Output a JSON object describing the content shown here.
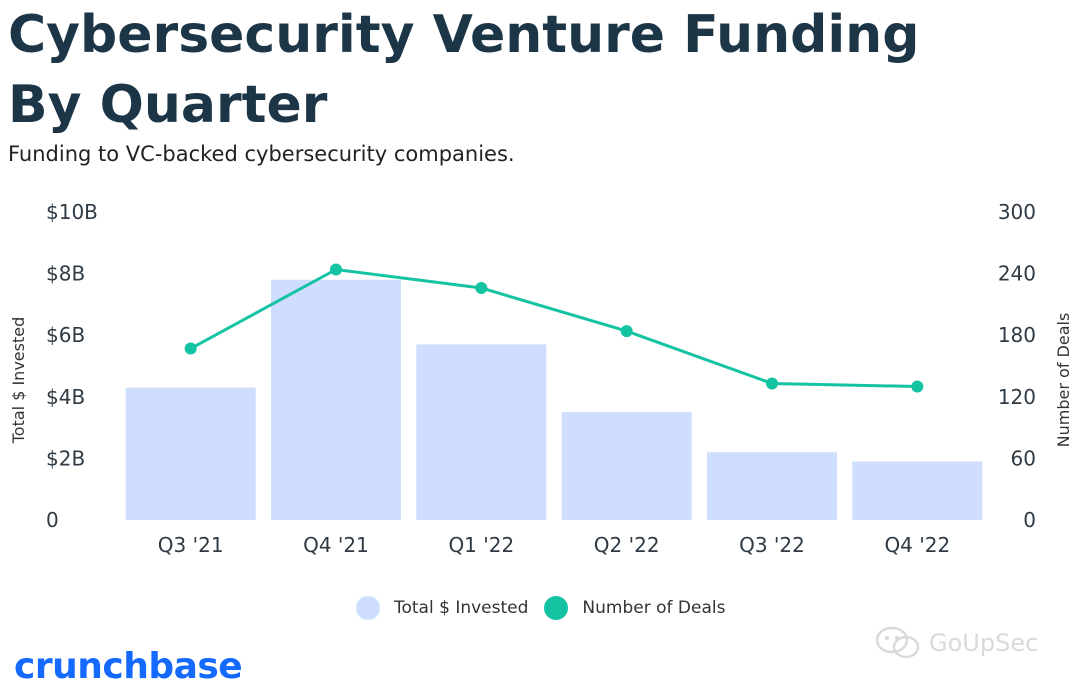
{
  "title": "Cybersecurity Venture Funding By Quarter",
  "subtitle": "Funding to VC-backed cybersecurity companies.",
  "brand": {
    "name": "crunchbase",
    "color": "#146aff"
  },
  "watermark": {
    "text": "GoUpSec"
  },
  "colors": {
    "bar": "#cfdefe",
    "line": "#14c3a2",
    "text": "#1c3547"
  },
  "chart_data": {
    "type": "bar",
    "categories": [
      "Q3 '21",
      "Q4 '21",
      "Q1 '22",
      "Q2 '22",
      "Q3 '22",
      "Q4 '22"
    ],
    "series": [
      {
        "name": "Total $ Invested",
        "type": "bar",
        "axis": "left",
        "values": [
          4.3,
          7.8,
          5.7,
          3.5,
          2.2,
          1.9
        ]
      },
      {
        "name": "Number of Deals",
        "type": "line",
        "axis": "right",
        "values": [
          167,
          244,
          226,
          184,
          133,
          130
        ]
      }
    ],
    "y_left": {
      "label": "Total $ Invested",
      "ticks": [
        "0",
        "$2B",
        "$4B",
        "$6B",
        "$8B",
        "$10B"
      ],
      "range": [
        0,
        10
      ]
    },
    "y_right": {
      "label": "Number of Deals",
      "ticks": [
        "0",
        "60",
        "120",
        "180",
        "240",
        "300"
      ],
      "range": [
        0,
        300
      ]
    },
    "grid": false,
    "legend_position": "bottom-center"
  }
}
